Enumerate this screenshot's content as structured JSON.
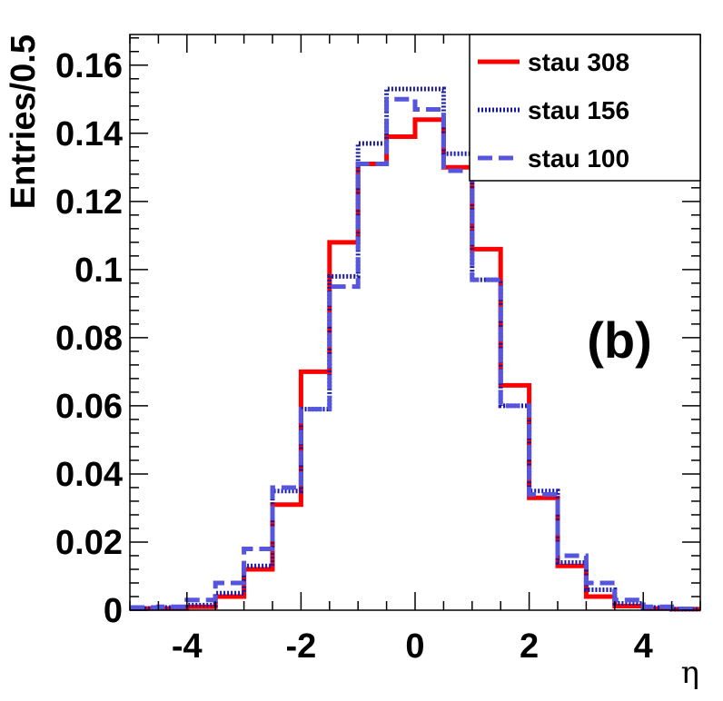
{
  "chart_data": {
    "type": "histogram",
    "xlabel": "η",
    "ylabel": "Entries/0.5",
    "xlim": [
      -5,
      5
    ],
    "ylim": [
      0,
      0.169
    ],
    "bin_width": 0.5,
    "x_ticks": [
      -4,
      -2,
      0,
      2,
      4
    ],
    "x_tick_labels": [
      "-4",
      "-2",
      "0",
      "2",
      "4"
    ],
    "y_ticks": [
      0,
      0.02,
      0.04,
      0.06,
      0.08,
      0.1,
      0.12,
      0.14,
      0.16
    ],
    "y_tick_labels": [
      "0",
      "0.02",
      "0.04",
      "0.06",
      "0.08",
      "0.1",
      "0.12",
      "0.14",
      "0.16"
    ],
    "annotation": "(b)",
    "legend_position": "top-right",
    "bin_edges": [
      -5,
      -4.5,
      -4,
      -3.5,
      -3,
      -2.5,
      -2,
      -1.5,
      -1,
      -0.5,
      0,
      0.5,
      1,
      1.5,
      2,
      2.5,
      3,
      3.5,
      4,
      4.5,
      5
    ],
    "series": [
      {
        "name": "stau 308",
        "color": "#ff0000",
        "style": "solid",
        "values": [
          0.0005,
          0.0005,
          0.001,
          0.004,
          0.012,
          0.031,
          0.07,
          0.108,
          0.131,
          0.139,
          0.144,
          0.13,
          0.106,
          0.066,
          0.033,
          0.013,
          0.004,
          0.0012,
          0.0005,
          0.0003
        ]
      },
      {
        "name": "stau 156",
        "color": "#1a1aa8",
        "style": "dotted",
        "values": [
          0.0005,
          0.0008,
          0.0015,
          0.005,
          0.013,
          0.035,
          0.059,
          0.098,
          0.137,
          0.153,
          0.153,
          0.134,
          0.097,
          0.06,
          0.035,
          0.014,
          0.006,
          0.002,
          0.0008,
          0.0003
        ]
      },
      {
        "name": "stau 100",
        "color": "#5555dd",
        "style": "dashed",
        "values": [
          0.0008,
          0.001,
          0.003,
          0.008,
          0.018,
          0.036,
          0.059,
          0.095,
          0.131,
          0.15,
          0.147,
          0.129,
          0.097,
          0.06,
          0.034,
          0.016,
          0.008,
          0.003,
          0.001,
          0.0004
        ]
      }
    ]
  }
}
